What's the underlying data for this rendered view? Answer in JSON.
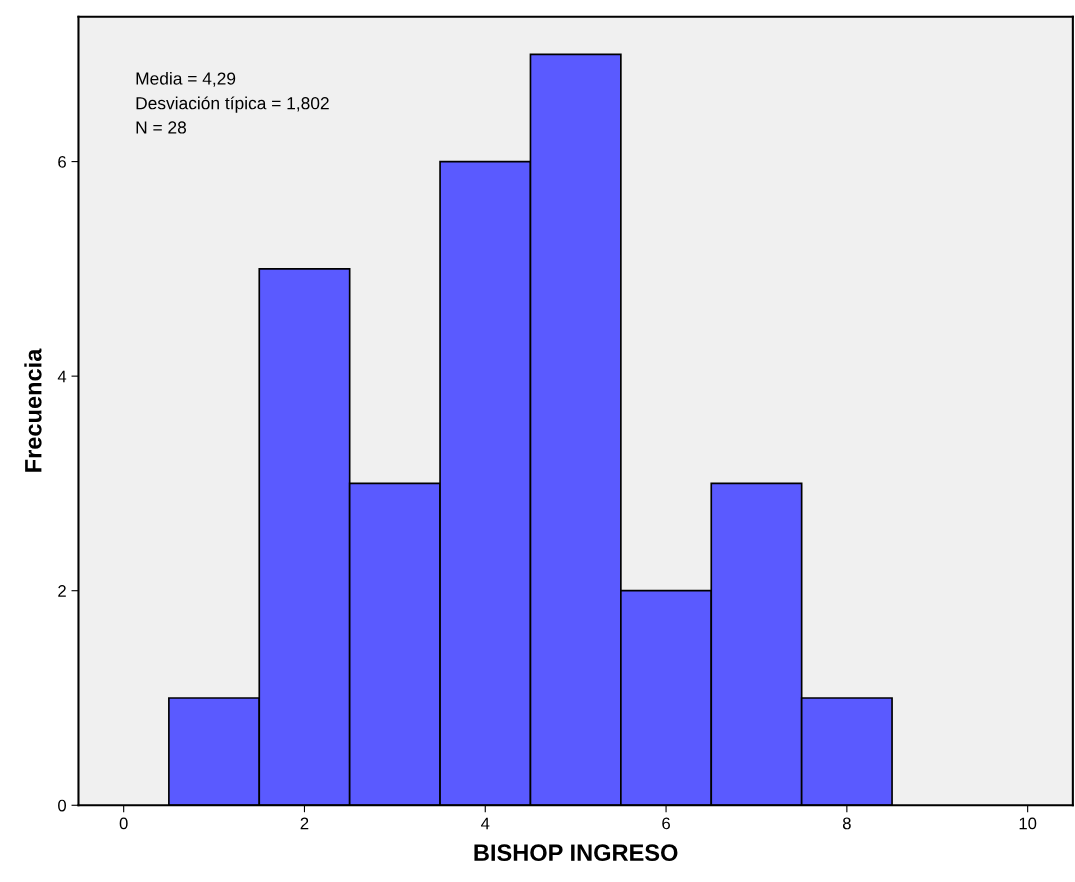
{
  "chart_data": {
    "type": "histogram",
    "xlabel": "BISHOP INGRESO",
    "ylabel": "Frecuencia",
    "bins": [
      0.5,
      1.5,
      2.5,
      3.5,
      4.5,
      5.5,
      6.5,
      7.5,
      8.5
    ],
    "values": [
      1,
      5,
      3,
      6,
      7,
      2,
      3,
      1
    ],
    "color": "#5a5aff",
    "xlim": [
      -0.5,
      10.5
    ],
    "xticks": [
      0,
      2,
      4,
      6,
      8,
      10
    ],
    "ylim": [
      0,
      7.35
    ],
    "yticks": [
      0,
      2,
      4,
      6
    ],
    "grid": false,
    "annotations": [
      "Media = 4,29",
      "Desviación típica = 1,802",
      "N = 28"
    ]
  }
}
